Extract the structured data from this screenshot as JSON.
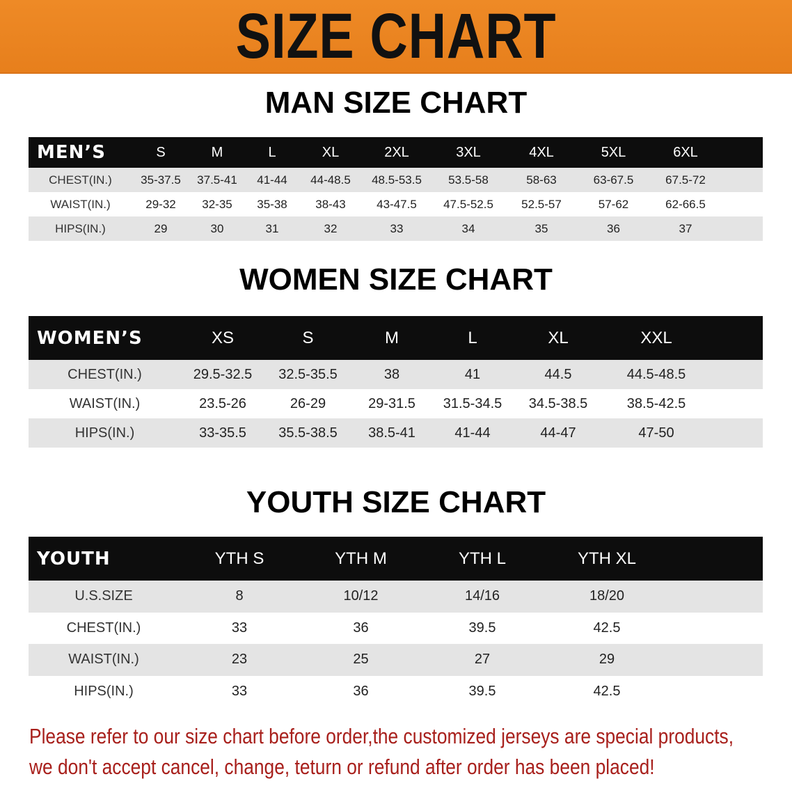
{
  "banner": {
    "title": "SIZE CHART",
    "color": "#e98420"
  },
  "men": {
    "title": "MAN SIZE CHART",
    "corner": "MEN’S",
    "sizes": [
      "S",
      "M",
      "L",
      "XL",
      "2XL",
      "3XL",
      "4XL",
      "5XL",
      "6XL"
    ],
    "rows": [
      {
        "label": "CHEST(IN.)",
        "values": [
          "35-37.5",
          "37.5-41",
          "41-44",
          "44-48.5",
          "48.5-53.5",
          "53.5-58",
          "58-63",
          "63-67.5",
          "67.5-72"
        ]
      },
      {
        "label": "WAIST(IN.)",
        "values": [
          "29-32",
          "32-35",
          "35-38",
          "38-43",
          "43-47.5",
          "47.5-52.5",
          "52.5-57",
          "57-62",
          "62-66.5"
        ]
      },
      {
        "label": "HIPS(IN.)",
        "values": [
          "29",
          "30",
          "31",
          "32",
          "33",
          "34",
          "35",
          "36",
          "37"
        ]
      }
    ]
  },
  "women": {
    "title": "WOMEN SIZE CHART",
    "corner": "WOMEN’S",
    "sizes": [
      "XS",
      "S",
      "M",
      "L",
      "XL",
      "XXL"
    ],
    "rows": [
      {
        "label": "CHEST(IN.)",
        "values": [
          "29.5-32.5",
          "32.5-35.5",
          "38",
          "41",
          "44.5",
          "44.5-48.5"
        ]
      },
      {
        "label": "WAIST(IN.)",
        "values": [
          "23.5-26",
          "26-29",
          "29-31.5",
          "31.5-34.5",
          "34.5-38.5",
          "38.5-42.5"
        ]
      },
      {
        "label": "HIPS(IN.)",
        "values": [
          "33-35.5",
          "35.5-38.5",
          "38.5-41",
          "41-44",
          "44-47",
          "47-50"
        ]
      }
    ]
  },
  "youth": {
    "title": "YOUTH SIZE CHART",
    "corner": "YOUTH",
    "sizes": [
      "YTH S",
      "YTH M",
      "YTH L",
      "YTH XL"
    ],
    "rows": [
      {
        "label": "U.S.SIZE",
        "values": [
          "8",
          "10/12",
          "14/16",
          "18/20"
        ]
      },
      {
        "label": "CHEST(IN.)",
        "values": [
          "33",
          "36",
          "39.5",
          "42.5"
        ]
      },
      {
        "label": "WAIST(IN.)",
        "values": [
          "23",
          "25",
          "27",
          "29"
        ]
      },
      {
        "label": "HIPS(IN.)",
        "values": [
          "33",
          "36",
          "39.5",
          "42.5"
        ]
      }
    ]
  },
  "notice": {
    "line1": "Please refer to our size chart before order,the customized jerseys are special products,",
    "line2": "we don't accept cancel, change, teturn or refund after order has been placed!",
    "color": "#a8201c"
  }
}
